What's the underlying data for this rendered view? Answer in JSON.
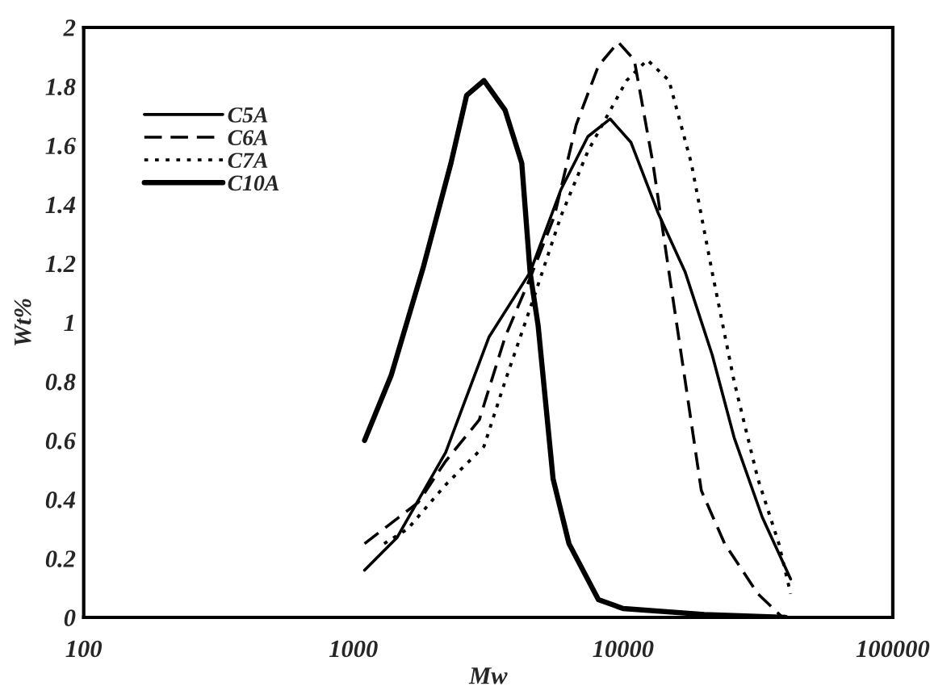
{
  "chart_data": {
    "type": "line",
    "xlabel": "Mw",
    "ylabel": "Wt%",
    "log": "x",
    "xlim": [
      100,
      100000
    ],
    "xticks": [
      100,
      1000,
      10000,
      100000
    ],
    "ylim": [
      0,
      2
    ],
    "yticks": [
      0,
      0.2,
      0.4,
      0.6,
      0.8,
      1,
      1.2,
      1.4,
      1.6,
      1.8,
      2
    ],
    "grid": false,
    "legend": "top left",
    "marker": "none",
    "series": [
      {
        "name": "C5A",
        "color": "#000000",
        "line_style": "solid",
        "x": [
          1100,
          1450,
          2200,
          3180,
          4520,
          5880,
          7400,
          8950,
          10700,
          13500,
          17000,
          21400,
          25800,
          32800,
          41800
        ],
        "values": [
          0.16,
          0.27,
          0.56,
          0.95,
          1.17,
          1.45,
          1.63,
          1.69,
          1.61,
          1.37,
          1.17,
          0.89,
          0.61,
          0.34,
          0.13
        ]
      },
      {
        "name": "C6A",
        "color": "#000000",
        "line_style": "dashed",
        "x": [
          1100,
          1740,
          2200,
          2930,
          3650,
          4520,
          5560,
          6700,
          8100,
          9600,
          11000,
          12900,
          14800,
          17000,
          19500,
          23800,
          31600,
          39000
        ],
        "values": [
          0.25,
          0.39,
          0.53,
          0.67,
          0.95,
          1.15,
          1.36,
          1.67,
          1.87,
          1.95,
          1.89,
          1.54,
          1.17,
          0.8,
          0.43,
          0.25,
          0.08,
          0.0
        ]
      },
      {
        "name": "C7A",
        "color": "#000000",
        "line_style": "dotted",
        "x": [
          1300,
          1590,
          2200,
          3050,
          3650,
          4650,
          5880,
          7400,
          10300,
          12300,
          14800,
          17900,
          21400,
          25800,
          31600,
          37800,
          41800
        ],
        "values": [
          0.25,
          0.3,
          0.45,
          0.58,
          0.8,
          1.08,
          1.36,
          1.58,
          1.82,
          1.89,
          1.82,
          1.54,
          1.17,
          0.8,
          0.47,
          0.25,
          0.08
        ]
      },
      {
        "name": "C10A",
        "color": "#000000",
        "line_style": "solid",
        "x": [
          1100,
          1380,
          1820,
          2300,
          2630,
          3050,
          3650,
          4210,
          4520,
          4840,
          5500,
          6300,
          8100,
          10000,
          20000,
          40000
        ],
        "values": [
          0.6,
          0.82,
          1.19,
          1.54,
          1.77,
          1.82,
          1.72,
          1.54,
          1.17,
          0.99,
          0.47,
          0.25,
          0.06,
          0.03,
          0.01,
          0.0
        ]
      }
    ]
  }
}
